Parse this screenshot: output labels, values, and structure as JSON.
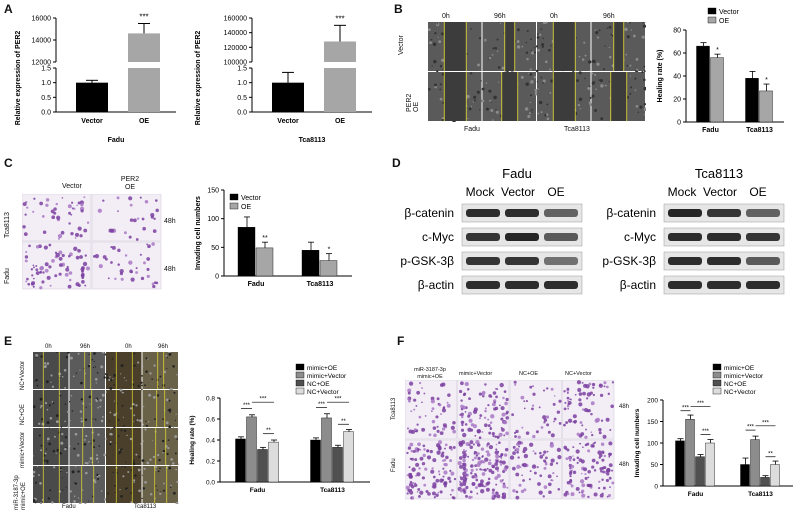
{
  "panels": {
    "A": {
      "label": "A",
      "charts": [
        {
          "ylabel": "Relative expression of PER2",
          "xlabel": "Fadu",
          "categories": [
            "Vector",
            "OE"
          ],
          "axis_lower": {
            "range": [
              0,
              1.5
            ],
            "ticks": [
              "0.0",
              "0.5",
              "1.0",
              "1.5"
            ]
          },
          "axis_upper": {
            "range": [
              12000,
              16000
            ],
            "ticks": [
              "12000",
              "14000",
              "16000"
            ]
          },
          "values": [
            1.0,
            14600
          ],
          "errors": [
            0.08,
            900
          ],
          "significance": "***",
          "colors": [
            "#000000",
            "#a6a6a6"
          ]
        },
        {
          "ylabel": "Relative expression of PER2",
          "xlabel": "Tca8113",
          "categories": [
            "Vector",
            "OE"
          ],
          "axis_lower": {
            "range": [
              0,
              1.5
            ],
            "ticks": [
              "0.0",
              "0.5",
              "1.0",
              "1.5"
            ]
          },
          "axis_upper": {
            "range": [
              100000,
              160000
            ],
            "ticks": [
              "100000",
              "120000",
              "140000",
              "160000"
            ]
          },
          "values": [
            1.0,
            128000
          ],
          "errors": [
            0.35,
            22000
          ],
          "significance": "***",
          "colors": [
            "#000000",
            "#a6a6a6"
          ]
        }
      ]
    },
    "B": {
      "label": "B",
      "time_labels": [
        "0h",
        "96h",
        "0h",
        "96h"
      ],
      "row_labels": [
        "Vector",
        "PER2 OE"
      ],
      "col_groups": [
        "Fadu",
        "Tca8113"
      ],
      "chart": {
        "type": "bar",
        "ylabel": "Healing rate (%)",
        "categories": [
          "Fadu",
          "Tca8113"
        ],
        "legend": [
          "Vector",
          "OE"
        ],
        "series": [
          {
            "name": "Vector",
            "values": [
              66,
              38
            ],
            "errors": [
              3,
              6
            ],
            "color": "#000000"
          },
          {
            "name": "OE",
            "values": [
              56,
              27
            ],
            "errors": [
              3,
              6
            ],
            "color": "#a6a6a6"
          }
        ],
        "ylim": [
          0,
          80
        ],
        "ticks": [
          "0",
          "20",
          "40",
          "60",
          "80"
        ],
        "significance": [
          "*",
          "*"
        ]
      }
    },
    "C": {
      "label": "C",
      "col_labels": [
        "Vector",
        "PER2 OE"
      ],
      "row_labels": [
        "Tca8113",
        "Fadu"
      ],
      "time_labels": [
        "48h",
        "48h"
      ],
      "chart": {
        "type": "bar",
        "ylabel": "Invading cell numbers",
        "categories": [
          "Fadu",
          "Tca8113"
        ],
        "legend": [
          "Vector",
          "OE"
        ],
        "series": [
          {
            "name": "Vector",
            "values": [
              85,
              45
            ],
            "errors": [
              18,
              14
            ],
            "color": "#000000"
          },
          {
            "name": "OE",
            "values": [
              49,
              27
            ],
            "errors": [
              10,
              12
            ],
            "color": "#a6a6a6"
          }
        ],
        "ylim": [
          0,
          150
        ],
        "ticks": [
          "0",
          "50",
          "100",
          "150"
        ],
        "significance": [
          "**",
          "*"
        ]
      }
    },
    "D": {
      "label": "D",
      "blots": [
        {
          "title": "Fadu",
          "lanes": [
            "Mock",
            "Vector",
            "OE"
          ],
          "proteins": [
            "β-catenin",
            "c-Myc",
            "p-GSK-3β",
            "β-actin"
          ]
        },
        {
          "title": "Tca8113",
          "lanes": [
            "Mock",
            "Vector",
            "OE"
          ],
          "proteins": [
            "β-catenin",
            "c-Myc",
            "p-GSK-3β",
            "β-actin"
          ]
        }
      ]
    },
    "E": {
      "label": "E",
      "time_labels": [
        "0h",
        "96h",
        "0h",
        "96h"
      ],
      "row_labels": [
        "NC+Vector",
        "NC+OE",
        "mimic+Vector",
        "miR-3187-3p mimic+OE"
      ],
      "col_groups": [
        "Fadu",
        "Tca8113"
      ],
      "chart": {
        "type": "bar",
        "ylabel": "Healing rate (%)",
        "categories": [
          "Fadu",
          "Tca8113"
        ],
        "legend": [
          "mimic+OE",
          "mimic+Vector",
          "NC+OE",
          "NC+Vector"
        ],
        "series": [
          {
            "name": "mimic+OE",
            "values": [
              0.41,
              0.4
            ],
            "errors": [
              0.02,
              0.02
            ],
            "color": "#000000"
          },
          {
            "name": "mimic+Vector",
            "values": [
              0.62,
              0.61
            ],
            "errors": [
              0.02,
              0.04
            ],
            "color": "#8c8c8c"
          },
          {
            "name": "NC+OE",
            "values": [
              0.31,
              0.33
            ],
            "errors": [
              0.02,
              0.02
            ],
            "color": "#505050"
          },
          {
            "name": "NC+Vector",
            "values": [
              0.38,
              0.48
            ],
            "errors": [
              0.02,
              0.02
            ],
            "color": "#dcdcdc"
          }
        ],
        "ylim": [
          0,
          0.8
        ],
        "ticks": [
          "0.0",
          "0.2",
          "0.4",
          "0.6",
          "0.8"
        ],
        "significance": [
          "***",
          "***",
          "**"
        ]
      }
    },
    "F": {
      "label": "F",
      "col_labels": [
        "miR-3187-3p mimic+OE",
        "mimic+Vector",
        "NC+OE",
        "NC+Vector"
      ],
      "row_labels": [
        "Tca8113",
        "Fadu"
      ],
      "time_labels": [
        "48h",
        "48h"
      ],
      "chart": {
        "type": "bar",
        "ylabel": "Invading cell numbers",
        "categories": [
          "Fadu",
          "Tca8113"
        ],
        "legend": [
          "mimic+OE",
          "mimic+Vector",
          "NC+OE",
          "NC+Vector"
        ],
        "series": [
          {
            "name": "mimic+OE",
            "values": [
              105,
              50
            ],
            "errors": [
              5,
              15
            ],
            "color": "#000000"
          },
          {
            "name": "mimic+Vector",
            "values": [
              155,
              108
            ],
            "errors": [
              10,
              8
            ],
            "color": "#8c8c8c"
          },
          {
            "name": "NC+OE",
            "values": [
              68,
              20
            ],
            "errors": [
              5,
              4
            ],
            "color": "#505050"
          },
          {
            "name": "NC+Vector",
            "values": [
              100,
              50
            ],
            "errors": [
              8,
              8
            ],
            "color": "#dcdcdc"
          }
        ],
        "ylim": [
          0,
          200
        ],
        "ticks": [
          "0",
          "50",
          "100",
          "150",
          "200"
        ],
        "significance": [
          "***",
          "***",
          "***"
        ]
      }
    }
  }
}
